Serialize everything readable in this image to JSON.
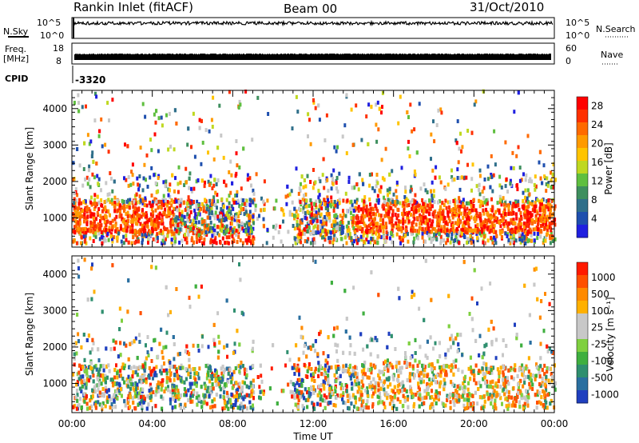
{
  "header": {
    "station": "Rankin Inlet (fitACF)",
    "beam": "Beam 00",
    "date": "31/Oct/2010"
  },
  "side_labels": {
    "nsky": "N.Sky",
    "freq": "Freq.",
    "freq_unit": "[MHz]",
    "cpid": "CPID",
    "cpid_value": "-3320",
    "nsearch": "N.Search",
    "nave": "Nave"
  },
  "top_ticks": {
    "nsky_hi": "10^5",
    "nsky_lo": "10^0",
    "nsearch_hi": "10^5",
    "nsearch_lo": "10^0",
    "freq_hi": "18",
    "freq_lo": "8",
    "nave_hi": "60",
    "nave_lo": "0"
  },
  "chart_data": [
    {
      "type": "heatmap",
      "title": "",
      "xlabel": "Time UT",
      "ylabel": "Slant Range [km]",
      "x_ticks": [
        "00:00",
        "04:00",
        "08:00",
        "12:00",
        "16:00",
        "20:00",
        "00:00"
      ],
      "xlim_hours": [
        0,
        24
      ],
      "y_ticks": [
        1000,
        2000,
        3000,
        4000
      ],
      "ylim": [
        200,
        4500
      ],
      "colorbar": {
        "label": "Power [dB]",
        "ticks": [
          "4",
          "8",
          "12",
          "16",
          "20",
          "24",
          "28"
        ],
        "range": [
          0,
          30
        ],
        "colors": [
          "#1f1fe0",
          "#1e4fae",
          "#2f6f8a",
          "#3e8f5e",
          "#5fbf3f",
          "#bfd820",
          "#ffc400",
          "#ff9a00",
          "#ff6a00",
          "#ff3000",
          "#ff0000"
        ]
      }
    },
    {
      "type": "heatmap",
      "title": "",
      "xlabel": "Time UT",
      "ylabel": "Slant Range [km]",
      "x_ticks": [
        "00:00",
        "04:00",
        "08:00",
        "12:00",
        "16:00",
        "20:00",
        "00:00"
      ],
      "xlim_hours": [
        0,
        24
      ],
      "y_ticks": [
        1000,
        2000,
        3000,
        4000
      ],
      "ylim": [
        200,
        4500
      ],
      "colorbar": {
        "label": "Velocity [m s⁻¹]",
        "ticks": [
          "1000",
          "500",
          "100",
          "25",
          "-25",
          "-100",
          "-500",
          "-1000"
        ],
        "range": [
          -1000,
          1000
        ],
        "colors": [
          "#1f3fbf",
          "#2a6fa0",
          "#2f8f6f",
          "#3faf3f",
          "#7fd040",
          "#c8c8c8",
          "#c8c8c8",
          "#ffb000",
          "#ff8a00",
          "#ff5000",
          "#ff1a00"
        ]
      }
    }
  ]
}
